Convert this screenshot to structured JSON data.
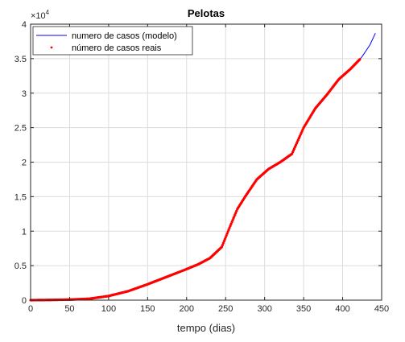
{
  "chart_data": {
    "type": "line",
    "title": "Pelotas",
    "xlabel": "tempo (dias)",
    "ylabel": "",
    "xlim": [
      0,
      450
    ],
    "ylim": [
      0,
      40000
    ],
    "y_exponent_label": "×10",
    "y_exponent_power": "4",
    "xticks": [
      0,
      50,
      100,
      150,
      200,
      250,
      300,
      350,
      400,
      450
    ],
    "xtick_labels": [
      "0",
      "50",
      "100",
      "150",
      "200",
      "250",
      "300",
      "350",
      "400",
      "450"
    ],
    "yticks": [
      0,
      5000,
      10000,
      15000,
      20000,
      25000,
      30000,
      35000,
      40000
    ],
    "ytick_labels": [
      "0",
      "0.5",
      "1",
      "1.5",
      "2",
      "2.5",
      "3",
      "3.5",
      "4"
    ],
    "grid": true,
    "legend_position": "top-left",
    "series": [
      {
        "name": "numero de casos (modelo)",
        "style": "line",
        "color": "#0000ff",
        "x": [
          0,
          25,
          50,
          75,
          100,
          125,
          150,
          175,
          200,
          215,
          230,
          245,
          255,
          265,
          275,
          290,
          305,
          320,
          335,
          350,
          365,
          380,
          395,
          410,
          425,
          435,
          442
        ],
        "y": [
          0,
          30,
          80,
          200,
          600,
          1300,
          2300,
          3400,
          4500,
          5200,
          6100,
          7700,
          10500,
          13200,
          15000,
          17500,
          19000,
          20000,
          21200,
          25000,
          27800,
          29800,
          32000,
          33500,
          35300,
          37000,
          38700
        ]
      },
      {
        "name": "número de casos reais",
        "style": "markers",
        "color": "#ff0000",
        "x": [
          0,
          25,
          50,
          75,
          100,
          125,
          150,
          175,
          200,
          215,
          230,
          245,
          255,
          265,
          275,
          290,
          305,
          320,
          335,
          350,
          365,
          380,
          395,
          410,
          422
        ],
        "y": [
          0,
          30,
          80,
          200,
          600,
          1300,
          2300,
          3400,
          4500,
          5200,
          6100,
          7700,
          10500,
          13200,
          15000,
          17500,
          19000,
          20000,
          21200,
          25000,
          27800,
          29800,
          32000,
          33500,
          34900
        ]
      }
    ]
  }
}
